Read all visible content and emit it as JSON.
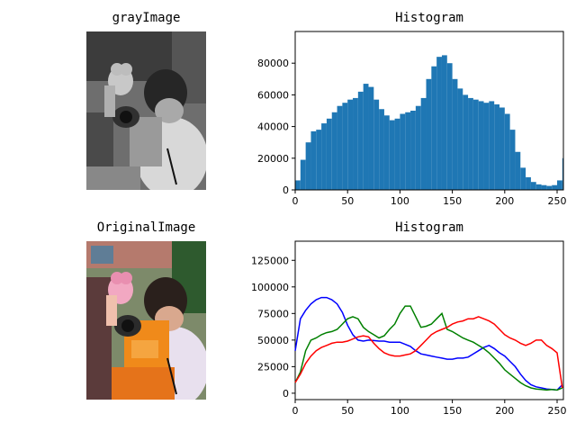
{
  "panels": {
    "gray_title": "grayImage",
    "original_title": "OriginalImage"
  },
  "chart_data": [
    {
      "type": "bar",
      "title": "Histogram",
      "xlabel": "",
      "ylabel": "",
      "xlim": [
        0,
        256
      ],
      "ylim": [
        0,
        100000
      ],
      "xticks": [
        0,
        50,
        100,
        150,
        200,
        250
      ],
      "yticks": [
        0,
        20000,
        40000,
        60000,
        80000
      ],
      "color": "#1f77b4",
      "x": [
        0,
        5,
        10,
        15,
        20,
        25,
        30,
        35,
        40,
        45,
        50,
        55,
        60,
        65,
        70,
        75,
        80,
        85,
        90,
        95,
        100,
        105,
        110,
        115,
        120,
        125,
        130,
        135,
        140,
        145,
        150,
        155,
        160,
        165,
        170,
        175,
        180,
        185,
        190,
        195,
        200,
        205,
        210,
        215,
        220,
        225,
        230,
        235,
        240,
        245,
        250,
        255
      ],
      "values": [
        6000,
        19000,
        30000,
        37000,
        38000,
        42000,
        45000,
        49000,
        53000,
        55000,
        57000,
        58000,
        62000,
        67000,
        65000,
        57000,
        51000,
        47000,
        44000,
        45000,
        48000,
        49000,
        50000,
        53000,
        58000,
        70000,
        78000,
        84000,
        85000,
        80000,
        70000,
        64000,
        60000,
        58000,
        57000,
        56000,
        55000,
        56000,
        54000,
        52000,
        48000,
        38000,
        24000,
        14000,
        8000,
        5000,
        3500,
        3000,
        2500,
        3000,
        6000,
        20000
      ]
    },
    {
      "type": "line",
      "title": "Histogram",
      "xlabel": "",
      "ylabel": "",
      "xlim": [
        0,
        256
      ],
      "ylim": [
        -6000,
        143000
      ],
      "xticks": [
        0,
        50,
        100,
        150,
        200,
        250
      ],
      "yticks": [
        0,
        25000,
        50000,
        75000,
        100000,
        125000
      ],
      "x": [
        0,
        5,
        10,
        15,
        20,
        25,
        30,
        35,
        40,
        45,
        50,
        55,
        60,
        65,
        70,
        75,
        80,
        85,
        90,
        95,
        100,
        105,
        110,
        115,
        120,
        125,
        130,
        135,
        140,
        145,
        150,
        155,
        160,
        165,
        170,
        175,
        180,
        185,
        190,
        195,
        200,
        205,
        210,
        215,
        220,
        225,
        230,
        235,
        240,
        245,
        250,
        255
      ],
      "series": [
        {
          "color": "#0000ff",
          "values": [
            40000,
            70000,
            78000,
            84000,
            88000,
            90000,
            90000,
            88000,
            84000,
            76000,
            64000,
            55000,
            50000,
            49000,
            50000,
            49500,
            49000,
            49000,
            48000,
            48000,
            48000,
            46000,
            44000,
            40000,
            37000,
            36000,
            35000,
            34000,
            33000,
            32000,
            32000,
            33000,
            33000,
            34000,
            37000,
            40000,
            43000,
            45000,
            42000,
            38000,
            35000,
            30000,
            25000,
            18000,
            12000,
            8000,
            6000,
            5000,
            4000,
            3500,
            3000,
            8000
          ]
        },
        {
          "color": "#008000",
          "values": [
            10000,
            20000,
            40000,
            50000,
            52000,
            55000,
            57000,
            58000,
            60000,
            65000,
            70000,
            72000,
            70000,
            62000,
            58000,
            55000,
            52000,
            54000,
            60000,
            65000,
            75000,
            82000,
            82000,
            72000,
            62000,
            63000,
            65000,
            70000,
            75000,
            60000,
            58000,
            55000,
            52000,
            50000,
            48000,
            45000,
            42000,
            38000,
            33000,
            28000,
            22000,
            18000,
            14000,
            10000,
            7000,
            5000,
            4000,
            3500,
            3000,
            3500,
            3000,
            5000
          ]
        },
        {
          "color": "#ff0000",
          "values": [
            10000,
            18000,
            28000,
            35000,
            40000,
            43000,
            45000,
            47000,
            48000,
            48000,
            49000,
            51000,
            53000,
            54000,
            53000,
            47000,
            42000,
            38000,
            36000,
            35000,
            35000,
            36000,
            37000,
            40000,
            45000,
            50000,
            55000,
            58000,
            60000,
            62000,
            65000,
            67000,
            68000,
            70000,
            70000,
            72000,
            70000,
            68000,
            65000,
            60000,
            55000,
            52000,
            50000,
            47000,
            45000,
            47000,
            50000,
            50000,
            45000,
            42000,
            38000,
            5000
          ]
        }
      ]
    }
  ]
}
